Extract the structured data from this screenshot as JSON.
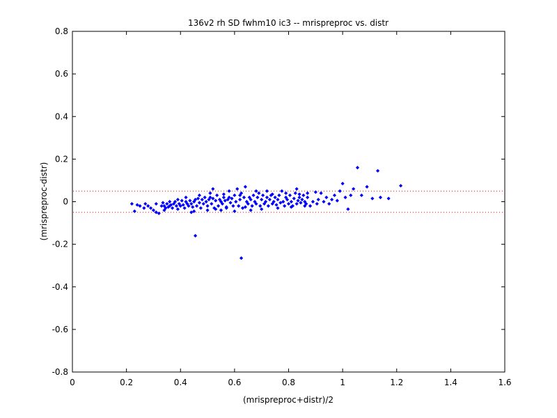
{
  "chart_data": {
    "type": "scatter",
    "title": "136v2 rh SD fwhm10 ic3 -- mrispreproc vs. distr",
    "xlabel": "(mrispreproc+distr)/2",
    "ylabel": "(mrispreproc-distr)",
    "xlim": [
      0,
      1.6
    ],
    "ylim": [
      -0.8,
      0.8
    ],
    "xticks": [
      0,
      0.2,
      0.4,
      0.6,
      0.8,
      1,
      1.2,
      1.4,
      1.6
    ],
    "xtick_labels": [
      "0",
      "0.2",
      "0.4",
      "0.6",
      "0.8",
      "1",
      "1.2",
      "1.4",
      "1.6"
    ],
    "yticks": [
      -0.8,
      -0.6,
      -0.4,
      -0.2,
      0,
      0.2,
      0.4,
      0.6,
      0.8
    ],
    "ytick_labels": [
      "-0.8",
      "-0.6",
      "-0.4",
      "-0.2",
      "0",
      "0.2",
      "0.4",
      "0.6",
      "0.8"
    ],
    "grid": false,
    "reference_lines": [
      {
        "y": 0.05,
        "style": "dotted",
        "color": "#ff0000"
      },
      {
        "y": -0.05,
        "style": "dotted",
        "color": "#ff0000"
      }
    ],
    "series": [
      {
        "color": "#0000ff",
        "marker": "dot",
        "points": [
          [
            0.22,
            -0.01
          ],
          [
            0.23,
            -0.045
          ],
          [
            0.24,
            -0.015
          ],
          [
            0.25,
            -0.02
          ],
          [
            0.265,
            -0.03
          ],
          [
            0.27,
            -0.01
          ],
          [
            0.28,
            -0.02
          ],
          [
            0.29,
            -0.03
          ],
          [
            0.3,
            -0.04
          ],
          [
            0.31,
            -0.01
          ],
          [
            0.31,
            -0.05
          ],
          [
            0.32,
            -0.055
          ],
          [
            0.33,
            -0.02
          ],
          [
            0.335,
            -0.005
          ],
          [
            0.34,
            -0.02
          ],
          [
            0.345,
            -0.03
          ],
          [
            0.35,
            -0.01
          ],
          [
            0.355,
            -0.025
          ],
          [
            0.36,
            -0.02
          ],
          [
            0.365,
            -0.015
          ],
          [
            0.37,
            -0.03
          ],
          [
            0.375,
            -0.01
          ],
          [
            0.38,
            0.0
          ],
          [
            0.385,
            -0.02
          ],
          [
            0.39,
            0.01
          ],
          [
            0.395,
            -0.01
          ],
          [
            0.4,
            -0.02
          ],
          [
            0.405,
            0.005
          ],
          [
            0.41,
            -0.015
          ],
          [
            0.415,
            -0.03
          ],
          [
            0.42,
            0.0
          ],
          [
            0.425,
            -0.01
          ],
          [
            0.43,
            -0.02
          ],
          [
            0.435,
            0.005
          ],
          [
            0.44,
            -0.01
          ],
          [
            0.445,
            -0.025
          ],
          [
            0.45,
            0.0
          ],
          [
            0.455,
            0.01
          ],
          [
            0.46,
            -0.02
          ],
          [
            0.465,
            0.015
          ],
          [
            0.47,
            -0.005
          ],
          [
            0.475,
            -0.03
          ],
          [
            0.48,
            0.01
          ],
          [
            0.485,
            -0.01
          ],
          [
            0.49,
            0.02
          ],
          [
            0.495,
            0.0
          ],
          [
            0.5,
            -0.02
          ],
          [
            0.505,
            0.01
          ],
          [
            0.51,
            0.02
          ],
          [
            0.515,
            -0.01
          ],
          [
            0.52,
            0.015
          ],
          [
            0.525,
            -0.03
          ],
          [
            0.53,
            0.005
          ],
          [
            0.535,
            0.03
          ],
          [
            0.54,
            -0.02
          ],
          [
            0.545,
            0.01
          ],
          [
            0.55,
            0.0
          ],
          [
            0.555,
            -0.01
          ],
          [
            0.56,
            0.02
          ],
          [
            0.565,
            0.005
          ],
          [
            0.57,
            -0.025
          ],
          [
            0.575,
            0.01
          ],
          [
            0.58,
            0.02
          ],
          [
            0.585,
            -0.005
          ],
          [
            0.59,
            0.015
          ],
          [
            0.595,
            -0.02
          ],
          [
            0.6,
            0.03
          ],
          [
            0.605,
            0.0
          ],
          [
            0.61,
            0.06
          ],
          [
            0.615,
            -0.02
          ],
          [
            0.62,
            0.01
          ],
          [
            0.625,
            0.04
          ],
          [
            0.63,
            -0.03
          ],
          [
            0.635,
            0.02
          ],
          [
            0.64,
            0.07
          ],
          [
            0.645,
            0.0
          ],
          [
            0.65,
            -0.01
          ],
          [
            0.655,
            0.02
          ],
          [
            0.66,
            0.01
          ],
          [
            0.665,
            -0.02
          ],
          [
            0.67,
            0.03
          ],
          [
            0.675,
            0.0
          ],
          [
            0.68,
            -0.01
          ],
          [
            0.685,
            0.02
          ],
          [
            0.69,
            0.04
          ],
          [
            0.695,
            -0.02
          ],
          [
            0.7,
            0.01
          ],
          [
            0.705,
            0.03
          ],
          [
            0.71,
            -0.01
          ],
          [
            0.715,
            0.0
          ],
          [
            0.72,
            0.02
          ],
          [
            0.725,
            -0.02
          ],
          [
            0.73,
            0.01
          ],
          [
            0.735,
            0.03
          ],
          [
            0.74,
            -0.01
          ],
          [
            0.745,
            0.0
          ],
          [
            0.75,
            0.02
          ],
          [
            0.755,
            -0.015
          ],
          [
            0.76,
            0.01
          ],
          [
            0.765,
            0.03
          ],
          [
            0.77,
            -0.005
          ],
          [
            0.775,
            0.05
          ],
          [
            0.78,
            0.0
          ],
          [
            0.785,
            -0.02
          ],
          [
            0.79,
            0.02
          ],
          [
            0.795,
            0.01
          ],
          [
            0.8,
            -0.01
          ],
          [
            0.805,
            0.03
          ],
          [
            0.81,
            0.0
          ],
          [
            0.815,
            -0.02
          ],
          [
            0.82,
            0.015
          ],
          [
            0.825,
            0.04
          ],
          [
            0.83,
            -0.01
          ],
          [
            0.835,
            0.005
          ],
          [
            0.84,
            0.02
          ],
          [
            0.845,
            -0.005
          ],
          [
            0.85,
            0.01
          ],
          [
            0.855,
            0.03
          ],
          [
            0.86,
            0.0
          ],
          [
            0.865,
            -0.01
          ],
          [
            0.87,
            0.02
          ],
          [
            0.88,
            -0.02
          ],
          [
            0.89,
            0.0
          ],
          [
            0.9,
            0.045
          ],
          [
            0.905,
            -0.01
          ],
          [
            0.91,
            0.01
          ],
          [
            0.92,
            0.04
          ],
          [
            0.93,
            0.0
          ],
          [
            0.94,
            0.02
          ],
          [
            0.95,
            -0.01
          ],
          [
            0.96,
            0.01
          ],
          [
            0.97,
            0.03
          ],
          [
            0.98,
            0.005
          ],
          [
            0.99,
            0.05
          ],
          [
            1.0,
            0.085
          ],
          [
            1.01,
            0.02
          ],
          [
            1.02,
            -0.035
          ],
          [
            1.03,
            0.03
          ],
          [
            1.04,
            0.06
          ],
          [
            1.055,
            0.16
          ],
          [
            1.07,
            0.03
          ],
          [
            1.09,
            0.07
          ],
          [
            1.11,
            0.015
          ],
          [
            1.13,
            0.145
          ],
          [
            1.14,
            0.02
          ],
          [
            1.17,
            0.015
          ],
          [
            1.215,
            0.075
          ],
          [
            0.455,
            -0.16
          ],
          [
            0.625,
            -0.265
          ],
          [
            0.44,
            -0.05
          ],
          [
            0.5,
            -0.04
          ],
          [
            0.55,
            -0.04
          ],
          [
            0.6,
            -0.045
          ],
          [
            0.66,
            -0.04
          ],
          [
            0.7,
            -0.035
          ],
          [
            0.52,
            0.06
          ],
          [
            0.58,
            0.05
          ],
          [
            0.68,
            0.05
          ],
          [
            0.72,
            0.05
          ],
          [
            0.83,
            0.06
          ],
          [
            0.87,
            0.04
          ],
          [
            0.36,
            0.0
          ],
          [
            0.42,
            0.02
          ],
          [
            0.47,
            0.03
          ],
          [
            0.51,
            0.04
          ],
          [
            0.56,
            0.035
          ],
          [
            0.62,
            0.03
          ],
          [
            0.74,
            0.035
          ],
          [
            0.79,
            0.04
          ],
          [
            0.84,
            0.035
          ],
          [
            0.76,
            -0.03
          ],
          [
            0.81,
            -0.025
          ],
          [
            0.86,
            -0.02
          ],
          [
            0.34,
            -0.04
          ],
          [
            0.39,
            -0.035
          ],
          [
            0.45,
            -0.045
          ],
          [
            0.53,
            -0.035
          ],
          [
            0.57,
            -0.03
          ],
          [
            0.64,
            -0.025
          ]
        ]
      }
    ]
  }
}
